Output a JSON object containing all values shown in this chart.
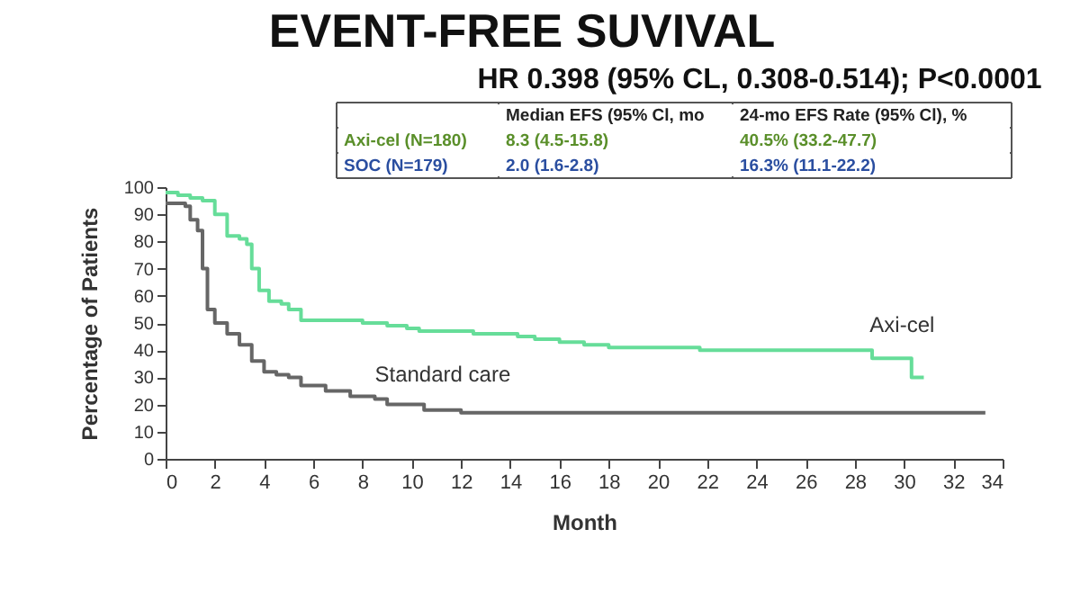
{
  "chart_data": {
    "type": "step",
    "title": "EVENT-FREE SUVIVAL",
    "subtitle": "HR 0.398 (95% CL, 0.308-0.514); P<0.0001",
    "xlabel": "Month",
    "ylabel": "Percentage of Patients",
    "xlim": [
      0,
      34
    ],
    "xticks": [
      0,
      2,
      4,
      6,
      8,
      10,
      12,
      14,
      16,
      18,
      20,
      22,
      24,
      26,
      28,
      30,
      32,
      34
    ],
    "ylim": [
      0,
      100
    ],
    "yticks": [
      0,
      10,
      20,
      30,
      40,
      50,
      60,
      70,
      80,
      90,
      100
    ],
    "grid": false,
    "series": [
      {
        "name": "Axi-cel",
        "color": "#66dd99",
        "x": [
          0,
          0.5,
          1,
          1.5,
          2,
          2.5,
          3,
          3.3,
          3.5,
          3.8,
          4.2,
          4.7,
          5,
          5.5,
          7,
          8,
          9,
          9.8,
          10.3,
          12,
          12.5,
          14.3,
          15,
          16,
          17,
          18,
          21.5,
          21.7,
          28.6,
          28.7,
          30.2,
          30.3,
          30.8
        ],
        "values": [
          98,
          97,
          96,
          95,
          90,
          82,
          81,
          79,
          70,
          62,
          58,
          57,
          55,
          51,
          51,
          50,
          49,
          48,
          47,
          47,
          46,
          45,
          44,
          43,
          42,
          41,
          41,
          40,
          40,
          37,
          37,
          30,
          30
        ]
      },
      {
        "name": "Standard care",
        "color": "#666666",
        "x": [
          0,
          0.8,
          1,
          1.3,
          1.5,
          1.7,
          2,
          2.5,
          3,
          3.5,
          4,
          4.5,
          5,
          5.5,
          6.5,
          7.5,
          8.5,
          9,
          10.5,
          12,
          33.3
        ],
        "values": [
          94,
          93,
          88,
          84,
          70,
          55,
          50,
          46,
          42,
          36,
          32,
          31,
          30,
          27,
          25,
          23,
          22,
          20,
          18,
          17,
          17
        ]
      }
    ],
    "annotations": [
      "Median EFS (95% Cl, mo",
      "24-mo EFS Rate (95% Cl), %",
      "Axi-cel (N=180)",
      "8.3 (4.5-15.8)",
      "40.5% (33.2-47.7)",
      "SOC (N=179)",
      "2.0 (1.6-2.8)",
      "16.3% (11.1-22.2)"
    ]
  }
}
